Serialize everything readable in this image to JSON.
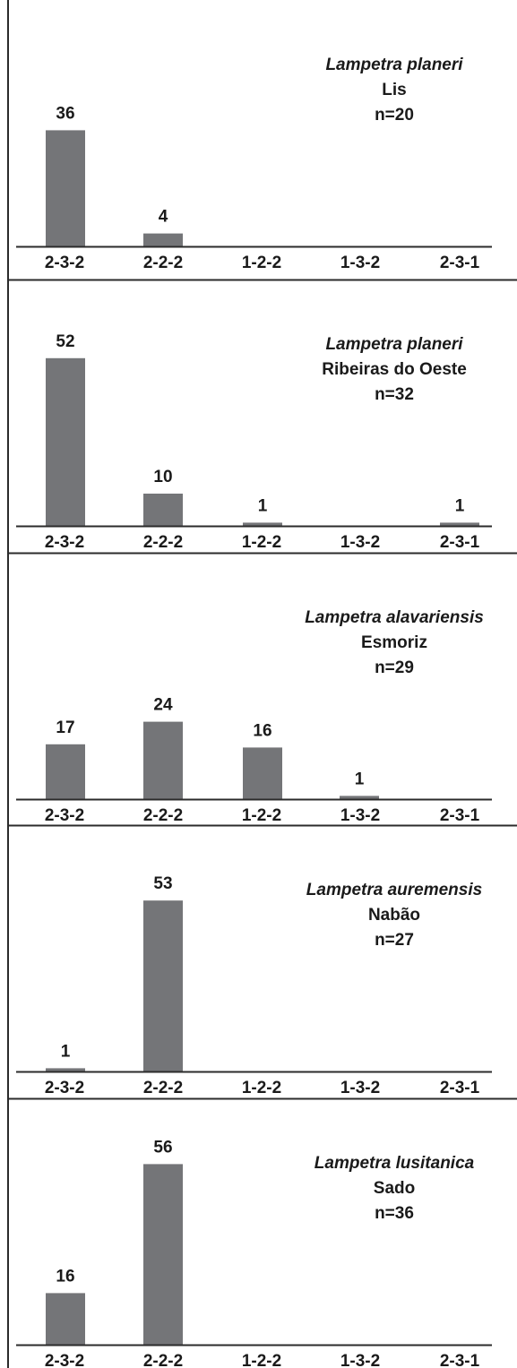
{
  "chart_data": [
    {
      "type": "bar",
      "categories": [
        "2-3-2",
        "2-2-2",
        "1-2-2",
        "1-3-2",
        "2-3-1"
      ],
      "values": [
        36,
        4,
        0,
        0,
        0
      ],
      "data_labels": [
        "36",
        "4",
        "",
        "",
        ""
      ],
      "species": "Lampetra planeri",
      "location": "Lis",
      "n_label": "n=20",
      "ylim": [
        0,
        60
      ],
      "bar_color": "#747578"
    },
    {
      "type": "bar",
      "categories": [
        "2-3-2",
        "2-2-2",
        "1-2-2",
        "1-3-2",
        "2-3-1"
      ],
      "values": [
        52,
        10,
        1,
        0,
        1
      ],
      "data_labels": [
        "52",
        "10",
        "1",
        "",
        "1"
      ],
      "species": "Lampetra planeri",
      "location": "Ribeiras do Oeste",
      "n_label": "n=32",
      "ylim": [
        0,
        60
      ],
      "bar_color": "#747578"
    },
    {
      "type": "bar",
      "categories": [
        "2-3-2",
        "2-2-2",
        "1-2-2",
        "1-3-2",
        "2-3-1"
      ],
      "values": [
        17,
        24,
        16,
        1,
        0
      ],
      "data_labels": [
        "17",
        "24",
        "16",
        "1",
        ""
      ],
      "species": "Lampetra alavariensis",
      "location": "Esmoriz",
      "n_label": "n=29",
      "ylim": [
        0,
        60
      ],
      "bar_color": "#747578"
    },
    {
      "type": "bar",
      "categories": [
        "2-3-2",
        "2-2-2",
        "1-2-2",
        "1-3-2",
        "2-3-1"
      ],
      "values": [
        1,
        53,
        0,
        0,
        0
      ],
      "data_labels": [
        "1",
        "53",
        "",
        "",
        ""
      ],
      "species": "Lampetra auremensis",
      "location": "Nabão",
      "n_label": "n=27",
      "ylim": [
        0,
        60
      ],
      "bar_color": "#747578"
    },
    {
      "type": "bar",
      "categories": [
        "2-3-2",
        "2-2-2",
        "1-2-2",
        "1-3-2",
        "2-3-1"
      ],
      "values": [
        16,
        56,
        0,
        0,
        0
      ],
      "data_labels": [
        "16",
        "56",
        "",
        "",
        ""
      ],
      "species": "Lampetra lusitanica",
      "location": "Sado",
      "n_label": "n=36",
      "ylim": [
        0,
        60
      ],
      "bar_color": "#747578"
    }
  ]
}
